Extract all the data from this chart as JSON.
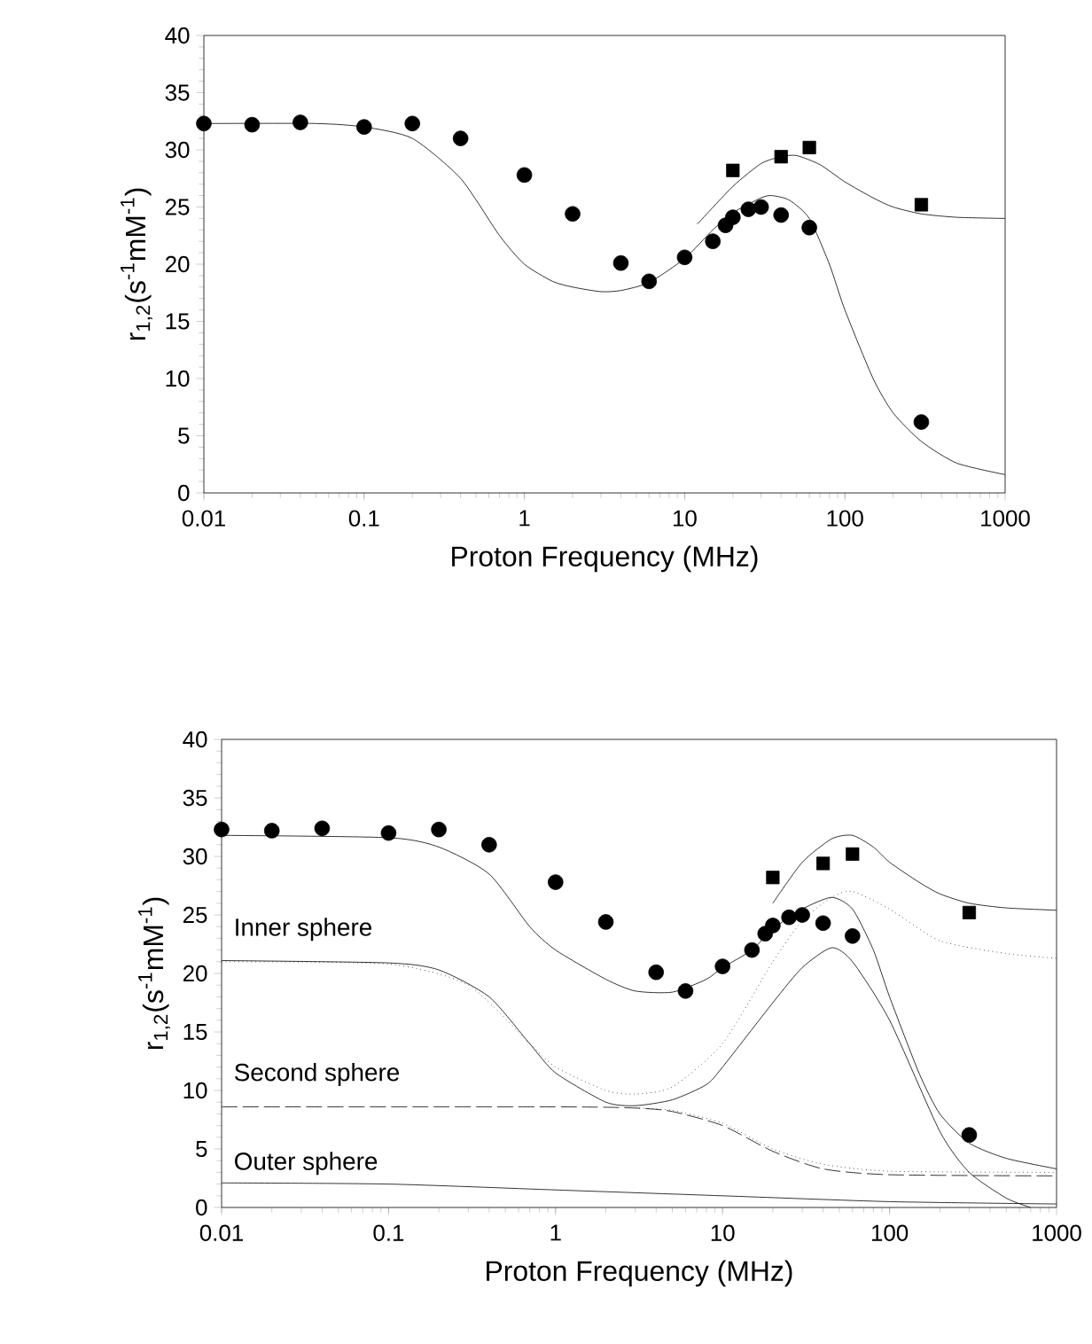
{
  "chart_data": [
    {
      "type": "line",
      "xlabel": "Proton Frequency (MHz)",
      "ylabel": "r$_{1,2}$(s$^{-1}$mM$^{-1}$)",
      "log": "x",
      "xlim": [
        0.01,
        1000
      ],
      "xticks": [
        0.01,
        0.1,
        1,
        10,
        100,
        1000
      ],
      "ylim": [
        0,
        40
      ],
      "yticks": [
        0,
        5,
        10,
        15,
        20,
        25,
        30,
        35,
        40
      ],
      "series": [
        {
          "type": "scatter",
          "marker": "circle",
          "color": "#000000",
          "x": [
            0.01,
            0.02,
            0.04,
            0.1,
            0.2,
            0.4,
            1,
            2,
            4,
            6,
            10,
            15,
            18,
            20,
            25,
            30,
            40,
            60,
            300
          ],
          "values": [
            32.3,
            32.2,
            32.4,
            32.0,
            32.3,
            31.0,
            27.8,
            24.4,
            20.1,
            18.5,
            20.6,
            22.0,
            23.4,
            24.1,
            24.8,
            25.0,
            24.3,
            23.2,
            6.2
          ]
        },
        {
          "type": "scatter",
          "marker": "square",
          "color": "#000000",
          "x": [
            20,
            40,
            60,
            300
          ],
          "values": [
            28.2,
            29.4,
            30.2,
            25.2
          ]
        },
        {
          "type": "line",
          "line_style": "solid",
          "color": "#000000",
          "x": [
            0.01,
            0.05,
            0.1,
            0.2,
            0.4,
            0.7,
            1,
            1.5,
            2,
            3,
            4,
            6,
            10,
            15,
            20,
            30,
            35,
            45,
            60,
            80,
            100,
            150,
            200,
            300,
            500,
            1000
          ],
          "values": [
            32.3,
            32.3,
            32.0,
            31.0,
            27.5,
            22.5,
            20.0,
            18.5,
            18.0,
            17.6,
            17.7,
            18.4,
            20.5,
            23.0,
            24.5,
            25.8,
            26.0,
            25.6,
            24.0,
            20.0,
            16.0,
            10.0,
            7.0,
            4.5,
            2.6,
            1.6
          ]
        },
        {
          "type": "line",
          "line_style": "solid",
          "color": "#000000",
          "x": [
            12,
            20,
            30,
            40,
            50,
            70,
            100,
            150,
            200,
            300,
            500,
            1000
          ],
          "values": [
            23.5,
            26.8,
            28.8,
            29.4,
            29.5,
            28.7,
            27.2,
            25.8,
            25.0,
            24.4,
            24.1,
            24.0
          ]
        }
      ]
    },
    {
      "type": "line",
      "xlabel": "Proton Frequency (MHz)",
      "ylabel": "r$_{1,2}$(s$^{-1}$mM$^{-1}$)",
      "log": "x",
      "xlim": [
        0.01,
        1000
      ],
      "xticks": [
        0.01,
        0.1,
        1,
        10,
        100,
        1000
      ],
      "ylim": [
        0,
        40
      ],
      "yticks": [
        0,
        5,
        10,
        15,
        20,
        25,
        30,
        35,
        40
      ],
      "annotations": [
        "Inner sphere",
        "Second sphere",
        "Outer sphere"
      ],
      "series": [
        {
          "type": "scatter",
          "marker": "circle",
          "color": "#000000",
          "x": [
            0.01,
            0.02,
            0.04,
            0.1,
            0.2,
            0.4,
            1,
            2,
            4,
            6,
            10,
            15,
            18,
            20,
            25,
            30,
            40,
            60,
            300
          ],
          "values": [
            32.3,
            32.2,
            32.4,
            32.0,
            32.3,
            31.0,
            27.8,
            24.4,
            20.1,
            18.5,
            20.6,
            22.0,
            23.4,
            24.1,
            24.8,
            25.0,
            24.3,
            23.2,
            6.2
          ]
        },
        {
          "type": "scatter",
          "marker": "square",
          "color": "#000000",
          "x": [
            20,
            40,
            60,
            300
          ],
          "values": [
            28.2,
            29.4,
            30.2,
            25.2
          ]
        },
        {
          "type": "line",
          "line_style": "solid",
          "color": "#000000",
          "x": [
            0.01,
            0.1,
            0.2,
            0.4,
            0.7,
            1,
            2,
            3,
            5,
            8,
            10,
            15,
            20,
            30,
            45,
            60,
            80,
            100,
            150,
            200,
            300,
            500,
            1000
          ],
          "values": [
            31.8,
            31.6,
            30.8,
            28.5,
            24.0,
            22.0,
            19.5,
            18.5,
            18.4,
            19.5,
            20.5,
            22.0,
            23.8,
            25.5,
            26.5,
            25.5,
            22.0,
            18.0,
            11.5,
            8.0,
            5.5,
            4.2,
            3.3
          ]
        },
        {
          "type": "line",
          "line_style": "solid",
          "color": "#000000",
          "x": [
            20,
            30,
            45,
            60,
            80,
            100,
            150,
            200,
            300,
            500,
            1000
          ],
          "values": [
            26.0,
            29.5,
            31.5,
            31.8,
            30.8,
            29.5,
            27.8,
            26.8,
            26.0,
            25.6,
            25.4
          ]
        },
        {
          "type": "line",
          "line_style": "dotted",
          "color": "#000000",
          "x": [
            0.01,
            0.1,
            0.3,
            0.7,
            1,
            2,
            3,
            5,
            10,
            20,
            30,
            45,
            60,
            100,
            200,
            500,
            1000
          ],
          "values": [
            21.0,
            20.8,
            19.0,
            14.0,
            12.0,
            10.0,
            9.7,
            10.3,
            14.0,
            21.0,
            24.5,
            26.5,
            27.0,
            25.5,
            22.8,
            21.7,
            21.3
          ]
        },
        {
          "type": "line",
          "line_style": "solid",
          "color": "#000000",
          "x": [
            0.01,
            0.1,
            0.2,
            0.4,
            0.7,
            1,
            2,
            3,
            5,
            8,
            10,
            20,
            30,
            45,
            60,
            100,
            200,
            300,
            500,
            700
          ],
          "values": [
            21.1,
            20.9,
            20.3,
            18.0,
            14.0,
            11.5,
            9.0,
            8.7,
            9.2,
            10.5,
            12.0,
            17.5,
            20.5,
            22.2,
            21.0,
            16.0,
            6.5,
            3.0,
            0.8,
            0.0
          ]
        },
        {
          "type": "line",
          "line_style": "dashed",
          "color": "#000000",
          "x": [
            0.01,
            1,
            3,
            5,
            10,
            20,
            40,
            100,
            1000
          ],
          "values": [
            8.6,
            8.6,
            8.5,
            8.2,
            7.0,
            4.8,
            3.3,
            2.8,
            2.7
          ]
        },
        {
          "type": "line",
          "line_style": "dotted",
          "color": "#000000",
          "x": [
            3,
            5,
            10,
            20,
            40,
            100,
            1000
          ],
          "values": [
            8.5,
            8.3,
            7.2,
            5.0,
            3.7,
            3.1,
            3.0
          ]
        },
        {
          "type": "line",
          "line_style": "solid",
          "color": "#000000",
          "x": [
            0.01,
            0.1,
            1,
            10,
            100,
            1000
          ],
          "values": [
            2.1,
            2.0,
            1.5,
            1.0,
            0.5,
            0.3
          ]
        }
      ]
    }
  ]
}
